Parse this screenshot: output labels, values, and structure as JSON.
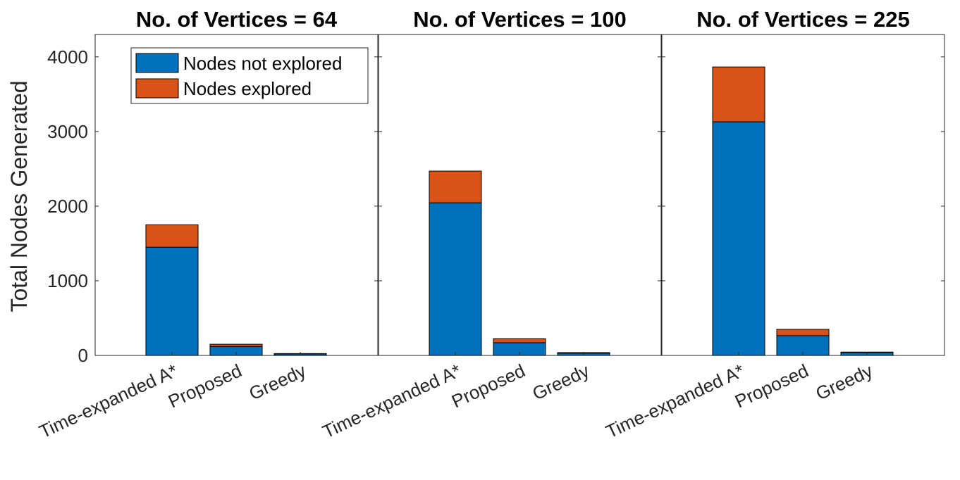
{
  "chart_data": {
    "type": "bar",
    "stacked": true,
    "ylabel": "Total Nodes Generated",
    "ylim": [
      0,
      4300
    ],
    "yticks": [
      0,
      1000,
      2000,
      3000,
      4000
    ],
    "categories": [
      "Time-expanded A*",
      "Proposed",
      "Greedy"
    ],
    "legend": {
      "position": "top-right of first panel",
      "entries": [
        "Nodes not explored",
        "Nodes explored"
      ]
    },
    "colors": {
      "not_explored": "#0072BD",
      "explored": "#D95319"
    },
    "panels": [
      {
        "title": "No. of Vertices = 64",
        "series": [
          {
            "name": "Nodes not explored",
            "values": [
              1450,
              120,
              20
            ]
          },
          {
            "name": "Nodes explored",
            "values": [
              300,
              30,
              5
            ]
          }
        ]
      },
      {
        "title": "No. of Vertices = 100",
        "series": [
          {
            "name": "Nodes not explored",
            "values": [
              2045,
              170,
              30
            ]
          },
          {
            "name": "Nodes explored",
            "values": [
              425,
              55,
              8
            ]
          }
        ]
      },
      {
        "title": "No. of Vertices = 225",
        "series": [
          {
            "name": "Nodes not explored",
            "values": [
              3130,
              265,
              40
            ]
          },
          {
            "name": "Nodes explored",
            "values": [
              735,
              85,
              5
            ]
          }
        ]
      }
    ]
  }
}
